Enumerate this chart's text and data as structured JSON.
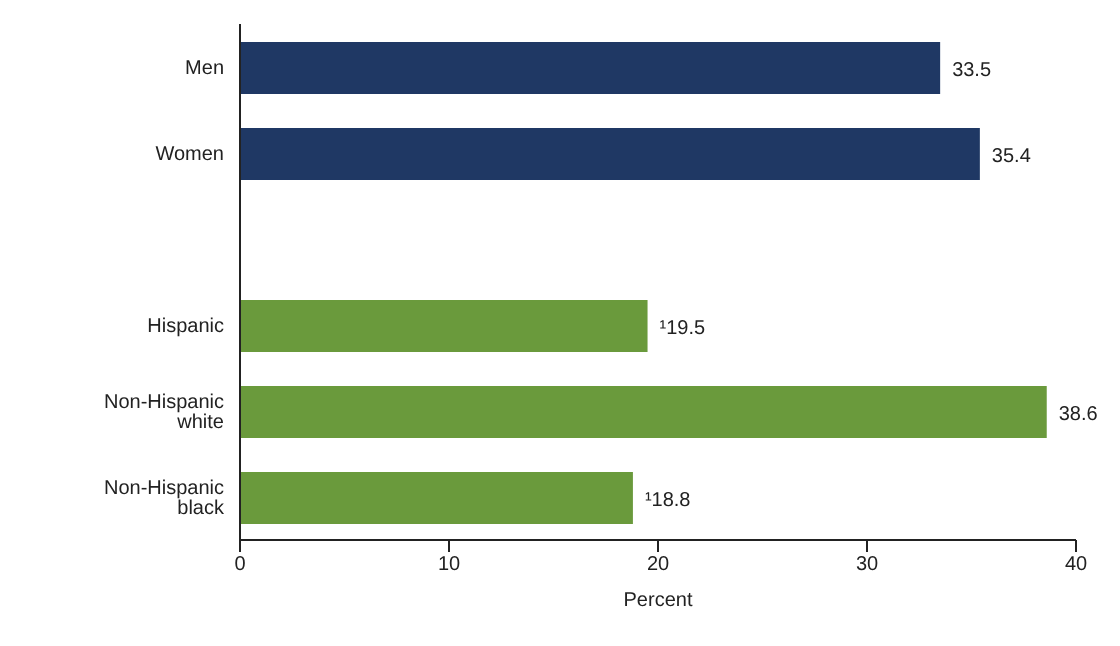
{
  "chart_data": {
    "type": "bar",
    "orientation": "horizontal",
    "categories": [
      "Men",
      "Women",
      null,
      "Hispanic",
      "Non-Hispanic white",
      "Non-Hispanic black"
    ],
    "values": [
      33.5,
      35.4,
      null,
      19.5,
      38.6,
      18.8
    ],
    "colors": [
      "#1f3864",
      "#1f3864",
      "#1f3864",
      "#6a9a3c",
      "#6a9a3c",
      "#6a9a3c"
    ],
    "value_labels": [
      "33.5",
      "35.4",
      null,
      "¹19.5",
      "38.6",
      "¹18.8"
    ],
    "xlim": [
      0,
      40
    ],
    "xticks": [
      0,
      10,
      20,
      30,
      40
    ],
    "xlabel": "Percent",
    "grid": false
  }
}
